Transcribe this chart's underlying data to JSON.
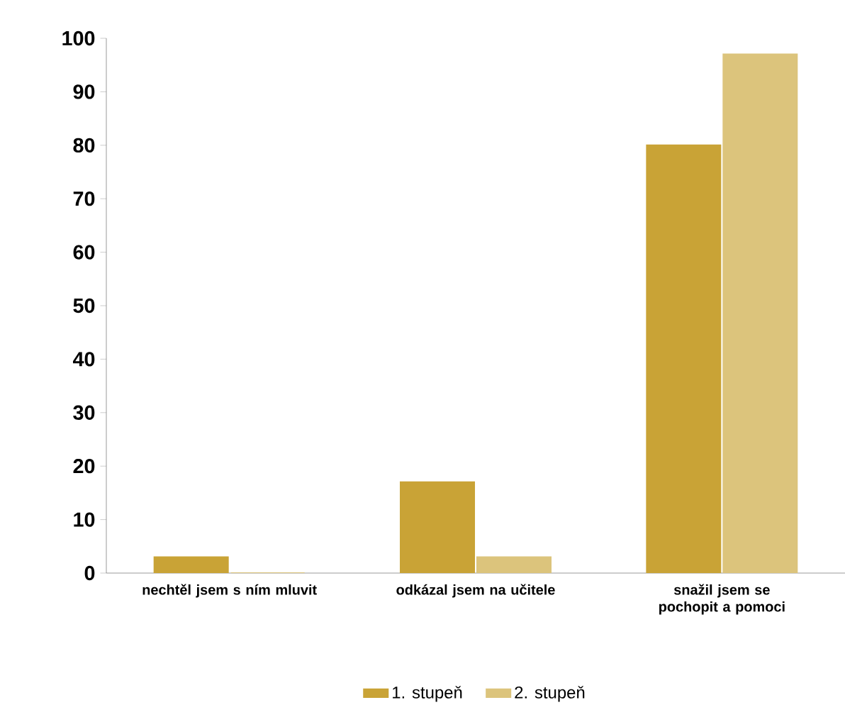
{
  "chart_data": {
    "type": "bar",
    "categories": [
      "nechtěl jsem s ním mluvit",
      "odkázal jsem na učitele",
      "snažil jsem se pochopit a pomoci"
    ],
    "series": [
      {
        "name": "1. stupeň",
        "color": "#c9a336",
        "values": [
          3,
          17,
          80
        ]
      },
      {
        "name": "2. stupeň",
        "color": "#dcc47c",
        "values": [
          0,
          3,
          97
        ]
      }
    ],
    "ylim": [
      0,
      100
    ],
    "yticks": [
      0,
      10,
      20,
      30,
      40,
      50,
      60,
      70,
      80,
      90,
      100
    ],
    "grid": false,
    "legend": "bottom"
  }
}
